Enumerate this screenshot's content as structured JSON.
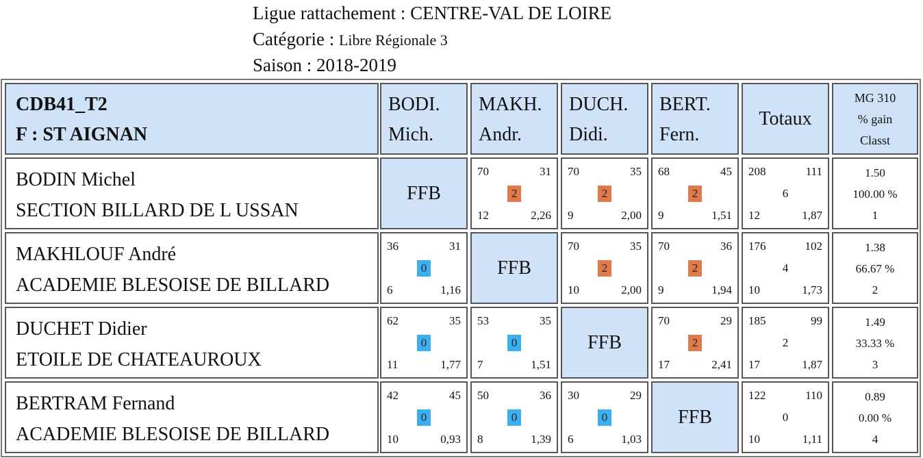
{
  "header": {
    "ligue_label": "Ligue rattachement : ",
    "ligue_value": "CENTRE-VAL DE LOIRE",
    "categorie_label": "Catégorie : ",
    "categorie_value": "Libre Régionale 3",
    "saison_label": "Saison : ",
    "saison_value": "2018-2019"
  },
  "table": {
    "corner": {
      "line1": "CDB41_T2",
      "line2": "F : ST AIGNAN"
    },
    "columns": [
      {
        "line1": "BODI.",
        "line2": "Mich."
      },
      {
        "line1": "MAKH.",
        "line2": "Andr."
      },
      {
        "line1": "DUCH.",
        "line2": "Didi."
      },
      {
        "line1": "BERT.",
        "line2": "Fern."
      }
    ],
    "totaux_label": "Totaux",
    "mg_header": {
      "line1": "MG 310",
      "line2": "% gain",
      "line3": "Classt"
    },
    "self_label": "FFB",
    "colors": {
      "header_bg": "#cfe2f8",
      "win_badge": "#e07a4a",
      "loss_badge": "#3ab0ee"
    },
    "rows": [
      {
        "name": "BODIN Michel",
        "club": "SECTION BILLARD DE L USSAN",
        "games": [
          null,
          {
            "points": "70",
            "opp": "31",
            "result": "2",
            "reprises": "12",
            "avg": "2,26"
          },
          {
            "points": "70",
            "opp": "35",
            "result": "2",
            "reprises": "9",
            "avg": "2,00"
          },
          {
            "points": "68",
            "opp": "45",
            "result": "2",
            "reprises": "9",
            "avg": "1,51"
          }
        ],
        "totals": {
          "points": "208",
          "opp": "111",
          "result": "6",
          "reprises": "12",
          "avg": "1,87"
        },
        "stats": {
          "mg": "1.50",
          "pct": "100.00 %",
          "rank": "1"
        }
      },
      {
        "name": "MAKHLOUF André",
        "club": "ACADEMIE BLESOISE DE BILLARD",
        "games": [
          {
            "points": "36",
            "opp": "31",
            "result": "0",
            "reprises": "6",
            "avg": "1,16"
          },
          null,
          {
            "points": "70",
            "opp": "35",
            "result": "2",
            "reprises": "10",
            "avg": "2,00"
          },
          {
            "points": "70",
            "opp": "36",
            "result": "2",
            "reprises": "9",
            "avg": "1,94"
          }
        ],
        "totals": {
          "points": "176",
          "opp": "102",
          "result": "4",
          "reprises": "10",
          "avg": "1,73"
        },
        "stats": {
          "mg": "1.38",
          "pct": "66.67 %",
          "rank": "2"
        }
      },
      {
        "name": "DUCHET Didier",
        "club": "ETOILE DE CHATEAUROUX",
        "games": [
          {
            "points": "62",
            "opp": "35",
            "result": "0",
            "reprises": "11",
            "avg": "1,77"
          },
          {
            "points": "53",
            "opp": "35",
            "result": "0",
            "reprises": "7",
            "avg": "1,51"
          },
          null,
          {
            "points": "70",
            "opp": "29",
            "result": "2",
            "reprises": "17",
            "avg": "2,41"
          }
        ],
        "totals": {
          "points": "185",
          "opp": "99",
          "result": "2",
          "reprises": "17",
          "avg": "1,87"
        },
        "stats": {
          "mg": "1.49",
          "pct": "33.33 %",
          "rank": "3"
        }
      },
      {
        "name": "BERTRAM Fernand",
        "club": "ACADEMIE BLESOISE DE BILLARD",
        "games": [
          {
            "points": "42",
            "opp": "45",
            "result": "0",
            "reprises": "10",
            "avg": "0,93"
          },
          {
            "points": "50",
            "opp": "36",
            "result": "0",
            "reprises": "8",
            "avg": "1,39"
          },
          {
            "points": "30",
            "opp": "29",
            "result": "0",
            "reprises": "6",
            "avg": "1,03"
          },
          null
        ],
        "totals": {
          "points": "122",
          "opp": "110",
          "result": "0",
          "reprises": "10",
          "avg": "1,11"
        },
        "stats": {
          "mg": "0.89",
          "pct": "0.00 %",
          "rank": "4"
        }
      }
    ]
  }
}
